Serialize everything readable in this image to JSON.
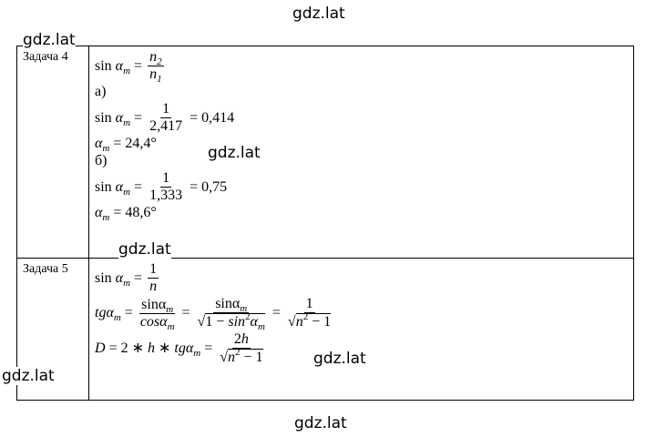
{
  "watermarks": [
    "gdz.lat",
    "gdz.lat",
    "gdz.lat",
    "gdz.lat",
    "gdz.lat",
    "gdz.lat",
    "gdz.lat"
  ],
  "table": {
    "rows": [
      {
        "label": "Задача 4",
        "lines": [
          [
            {
              "t": "sin "
            },
            {
              "i": "α"
            },
            {
              "sub": "m"
            },
            {
              "t": " = "
            },
            {
              "frac": [
                [
                  {
                    "i": "n"
                  },
                  {
                    "sub": "2"
                  }
                ],
                [
                  {
                    "i": "n"
                  },
                  {
                    "sub": "1"
                  }
                ]
              ]
            }
          ],
          [
            {
              "t": "а)"
            }
          ],
          [
            {
              "t": "sin "
            },
            {
              "i": "α"
            },
            {
              "sub": "m"
            },
            {
              "t": " = "
            },
            {
              "frac": [
                [
                  {
                    "t": "1"
                  }
                ],
                [
                  {
                    "t": "2,417"
                  }
                ]
              ]
            },
            {
              "t": " = 0,414"
            }
          ],
          [
            {
              "i": "α"
            },
            {
              "sub": "m"
            },
            {
              "t": " = 24,4°"
            }
          ],
          [
            {
              "t": "б)"
            }
          ],
          [
            {
              "t": "sin "
            },
            {
              "i": "α"
            },
            {
              "sub": "m"
            },
            {
              "t": " = "
            },
            {
              "frac": [
                [
                  {
                    "t": "1"
                  }
                ],
                [
                  {
                    "t": "1,333"
                  }
                ]
              ]
            },
            {
              "t": " = 0,75"
            }
          ],
          [
            {
              "i": "α"
            },
            {
              "sub": "m"
            },
            {
              "t": " = 48,6°"
            }
          ]
        ]
      },
      {
        "label": "Задача 5",
        "lines": [
          [
            {
              "t": "sin "
            },
            {
              "i": "α"
            },
            {
              "sub": "m"
            },
            {
              "t": " = "
            },
            {
              "frac": [
                [
                  {
                    "t": "1"
                  }
                ],
                [
                  {
                    "i": "n"
                  }
                ]
              ]
            }
          ],
          [
            {
              "i": "tgα"
            },
            {
              "sub": "m"
            },
            {
              "t": " = "
            },
            {
              "frac": [
                [
                  {
                    "t": "sinα"
                  },
                  {
                    "sub": "m"
                  }
                ],
                [
                  {
                    "i": "cosα"
                  },
                  {
                    "sub": "m"
                  }
                ]
              ]
            },
            {
              "t": " = "
            },
            {
              "frac": [
                [
                  {
                    "t": "sinα"
                  },
                  {
                    "sub": "m"
                  }
                ],
                [
                  {
                    "sqrt": [
                      {
                        "t": "1 − "
                      },
                      {
                        "i": "sin"
                      },
                      {
                        "sup": "2"
                      },
                      {
                        "i": "α"
                      },
                      {
                        "sub": "m"
                      }
                    ]
                  }
                ]
              ]
            },
            {
              "t": " = "
            },
            {
              "frac": [
                [
                  {
                    "t": "1"
                  }
                ],
                [
                  {
                    "sqrt": [
                      {
                        "i": "n"
                      },
                      {
                        "sup": "2"
                      },
                      {
                        "t": " − 1"
                      }
                    ]
                  }
                ]
              ]
            }
          ],
          [
            {
              "i": "D"
            },
            {
              "t": " = 2 ∗ "
            },
            {
              "i": "h"
            },
            {
              "t": " ∗ "
            },
            {
              "i": "tgα"
            },
            {
              "sub": "m"
            },
            {
              "t": " = "
            },
            {
              "frac": [
                [
                  {
                    "t": "2"
                  },
                  {
                    "i": "h"
                  }
                ],
                [
                  {
                    "sqrt": [
                      {
                        "i": "n"
                      },
                      {
                        "sup": "2"
                      },
                      {
                        "t": " − 1"
                      }
                    ]
                  }
                ]
              ]
            }
          ]
        ]
      }
    ]
  }
}
